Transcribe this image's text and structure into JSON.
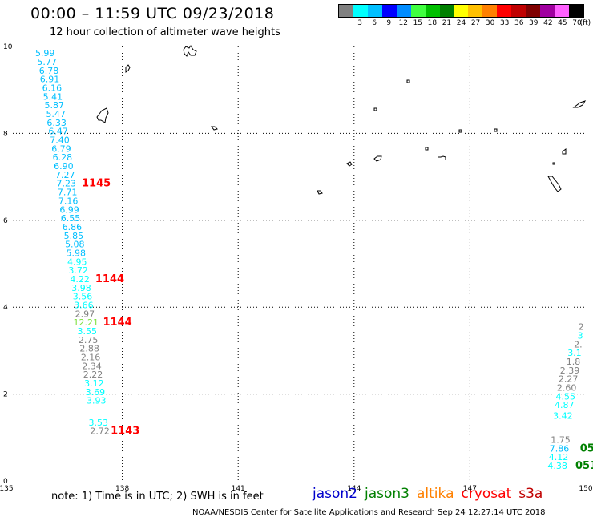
{
  "header": {
    "title": "00:00 – 11:59 UTC 09/23/2018",
    "subtitle": "12 hour collection of altimeter wave heights"
  },
  "legend": {
    "unit": "(ft)",
    "bins": [
      {
        "label": "",
        "color": "#808080"
      },
      {
        "label": "3",
        "color": "#00ffff"
      },
      {
        "label": "6",
        "color": "#00bfff"
      },
      {
        "label": "9",
        "color": "#0000ff"
      },
      {
        "label": "12",
        "color": "#008cff"
      },
      {
        "label": "15",
        "color": "#40ff40"
      },
      {
        "label": "18",
        "color": "#00c000"
      },
      {
        "label": "21",
        "color": "#008000"
      },
      {
        "label": "24",
        "color": "#ffff00"
      },
      {
        "label": "27",
        "color": "#ffc000"
      },
      {
        "label": "30",
        "color": "#ff8000"
      },
      {
        "label": "33",
        "color": "#ff0000"
      },
      {
        "label": "36",
        "color": "#c00000"
      },
      {
        "label": "39",
        "color": "#800000"
      },
      {
        "label": "42",
        "color": "#a000a0"
      },
      {
        "label": "45",
        "color": "#ff60ff"
      },
      {
        "label": "70",
        "color": "#000000"
      }
    ]
  },
  "axes": {
    "x_ticks": [
      "135",
      "138",
      "141",
      "144",
      "147",
      "150"
    ],
    "y_ticks": [
      "0",
      "2",
      "4",
      "6",
      "8",
      "10"
    ]
  },
  "chart_data": {
    "type": "scatter",
    "lon_range": [
      135,
      150
    ],
    "lat_range": [
      0,
      10
    ],
    "grid": true,
    "track_left": [
      {
        "lon": 136.0,
        "lat": 9.85,
        "v": "5.99",
        "c": "#00bfff"
      },
      {
        "lon": 136.05,
        "lat": 9.65,
        "v": "5.77",
        "c": "#00bfff"
      },
      {
        "lon": 136.1,
        "lat": 9.45,
        "v": "6.78",
        "c": "#00bfff"
      },
      {
        "lon": 136.12,
        "lat": 9.25,
        "v": "6.91",
        "c": "#00bfff"
      },
      {
        "lon": 136.18,
        "lat": 9.05,
        "v": "6.16",
        "c": "#00bfff"
      },
      {
        "lon": 136.2,
        "lat": 8.85,
        "v": "5.41",
        "c": "#00bfff"
      },
      {
        "lon": 136.24,
        "lat": 8.65,
        "v": "5.87",
        "c": "#00bfff"
      },
      {
        "lon": 136.28,
        "lat": 8.45,
        "v": "5.47",
        "c": "#00bfff"
      },
      {
        "lon": 136.3,
        "lat": 8.25,
        "v": "6.33",
        "c": "#00bfff"
      },
      {
        "lon": 136.34,
        "lat": 8.05,
        "v": "6.47",
        "c": "#00bfff"
      },
      {
        "lon": 136.38,
        "lat": 7.85,
        "v": "7.40",
        "c": "#00bfff"
      },
      {
        "lon": 136.42,
        "lat": 7.65,
        "v": "6.79",
        "c": "#00bfff"
      },
      {
        "lon": 136.45,
        "lat": 7.45,
        "v": "6.28",
        "c": "#00bfff"
      },
      {
        "lon": 136.48,
        "lat": 7.25,
        "v": "6.90",
        "c": "#00bfff"
      },
      {
        "lon": 136.52,
        "lat": 7.05,
        "v": "7.27",
        "c": "#00bfff"
      },
      {
        "lon": 136.55,
        "lat": 6.85,
        "v": "7.23",
        "c": "#00bfff"
      },
      {
        "lon": 136.58,
        "lat": 6.65,
        "v": "7.71",
        "c": "#00bfff"
      },
      {
        "lon": 136.6,
        "lat": 6.45,
        "v": "7.16",
        "c": "#00bfff"
      },
      {
        "lon": 136.63,
        "lat": 6.25,
        "v": "6.99",
        "c": "#00bfff"
      },
      {
        "lon": 136.66,
        "lat": 6.05,
        "v": "6.55",
        "c": "#00bfff"
      },
      {
        "lon": 136.7,
        "lat": 5.85,
        "v": "6.86",
        "c": "#00bfff"
      },
      {
        "lon": 136.74,
        "lat": 5.65,
        "v": "5.85",
        "c": "#00bfff"
      },
      {
        "lon": 136.77,
        "lat": 5.45,
        "v": "5.08",
        "c": "#00bfff"
      },
      {
        "lon": 136.8,
        "lat": 5.25,
        "v": "5.98",
        "c": "#00bfff"
      },
      {
        "lon": 136.83,
        "lat": 5.05,
        "v": "4.95",
        "c": "#00ffff"
      },
      {
        "lon": 136.86,
        "lat": 4.85,
        "v": "3.72",
        "c": "#00ffff"
      },
      {
        "lon": 136.9,
        "lat": 4.65,
        "v": "4.22",
        "c": "#00ffff"
      },
      {
        "lon": 136.94,
        "lat": 4.45,
        "v": "3.98",
        "c": "#00ffff"
      },
      {
        "lon": 136.97,
        "lat": 4.25,
        "v": "3.56",
        "c": "#00ffff"
      },
      {
        "lon": 137.0,
        "lat": 4.05,
        "v": "3.66",
        "c": "#00ffff"
      },
      {
        "lon": 137.03,
        "lat": 3.85,
        "v": "2.97",
        "c": "#808080"
      },
      {
        "lon": 137.06,
        "lat": 3.65,
        "v": "12.21",
        "c": "#80e040"
      },
      {
        "lon": 137.09,
        "lat": 3.45,
        "v": "3.55",
        "c": "#00ffff"
      },
      {
        "lon": 137.12,
        "lat": 3.25,
        "v": "2.75",
        "c": "#808080"
      },
      {
        "lon": 137.15,
        "lat": 3.05,
        "v": "2.88",
        "c": "#808080"
      },
      {
        "lon": 137.18,
        "lat": 2.85,
        "v": "2.16",
        "c": "#808080"
      },
      {
        "lon": 137.21,
        "lat": 2.65,
        "v": "2.34",
        "c": "#808080"
      },
      {
        "lon": 137.24,
        "lat": 2.45,
        "v": "2.22",
        "c": "#808080"
      },
      {
        "lon": 137.27,
        "lat": 2.25,
        "v": "3.12",
        "c": "#00ffff"
      },
      {
        "lon": 137.3,
        "lat": 2.05,
        "v": "3.69",
        "c": "#00ffff"
      },
      {
        "lon": 137.33,
        "lat": 1.85,
        "v": "3.93",
        "c": "#00ffff"
      },
      {
        "lon": 137.38,
        "lat": 1.35,
        "v": "3.53",
        "c": "#00ffff"
      },
      {
        "lon": 137.42,
        "lat": 1.15,
        "v": "2.72",
        "c": "#808080"
      }
    ],
    "track_right": [
      {
        "lon": 149.95,
        "lat": 3.55,
        "v": "2",
        "c": "#808080"
      },
      {
        "lon": 149.93,
        "lat": 3.35,
        "v": "3",
        "c": "#00ffff"
      },
      {
        "lon": 149.91,
        "lat": 3.15,
        "v": "2.",
        "c": "#808080"
      },
      {
        "lon": 149.89,
        "lat": 2.95,
        "v": "3.1",
        "c": "#00ffff"
      },
      {
        "lon": 149.86,
        "lat": 2.75,
        "v": "1.8",
        "c": "#808080"
      },
      {
        "lon": 149.84,
        "lat": 2.55,
        "v": "2.39",
        "c": "#808080"
      },
      {
        "lon": 149.8,
        "lat": 2.35,
        "v": "2.27",
        "c": "#808080"
      },
      {
        "lon": 149.76,
        "lat": 2.15,
        "v": "2.60",
        "c": "#808080"
      },
      {
        "lon": 149.73,
        "lat": 1.95,
        "v": "4.55",
        "c": "#00ffff"
      },
      {
        "lon": 149.7,
        "lat": 1.75,
        "v": "4.87",
        "c": "#00ffff"
      },
      {
        "lon": 149.66,
        "lat": 1.5,
        "v": "3.42",
        "c": "#00ffff"
      },
      {
        "lon": 149.6,
        "lat": 0.95,
        "v": "1.75",
        "c": "#808080"
      },
      {
        "lon": 149.57,
        "lat": 0.75,
        "v": "7.86",
        "c": "#00bfff"
      },
      {
        "lon": 149.55,
        "lat": 0.55,
        "v": "4.12",
        "c": "#00ffff"
      },
      {
        "lon": 149.52,
        "lat": 0.35,
        "v": "4.38",
        "c": "#00ffff"
      }
    ],
    "pass_labels": [
      {
        "lon": 136.95,
        "lat": 6.85,
        "text": "1145",
        "c": "#ff0000"
      },
      {
        "lon": 137.3,
        "lat": 4.65,
        "text": "1144",
        "c": "#ff0000"
      },
      {
        "lon": 137.5,
        "lat": 3.65,
        "text": "1144",
        "c": "#ff0000"
      },
      {
        "lon": 137.7,
        "lat": 1.15,
        "text": "1143",
        "c": "#ff0000"
      },
      {
        "lon": 149.85,
        "lat": 0.75,
        "text": "05",
        "c": "#008000"
      },
      {
        "lon": 149.73,
        "lat": 0.35,
        "text": "051",
        "c": "#008000"
      }
    ]
  },
  "footer": {
    "note": "note: 1) Time is in UTC; 2) SWH is in feet",
    "satellites": [
      {
        "name": "jason2",
        "color": "#0000cc"
      },
      {
        "name": "jason3",
        "color": "#008000"
      },
      {
        "name": "altika",
        "color": "#ff8000"
      },
      {
        "name": "cryosat",
        "color": "#ff0000"
      },
      {
        "name": "s3a",
        "color": "#c00000"
      }
    ],
    "credit": "NOAA/NESDIS Center for Satellite Applications and Research    Sep 24 12:27:14 UTC 2018"
  }
}
